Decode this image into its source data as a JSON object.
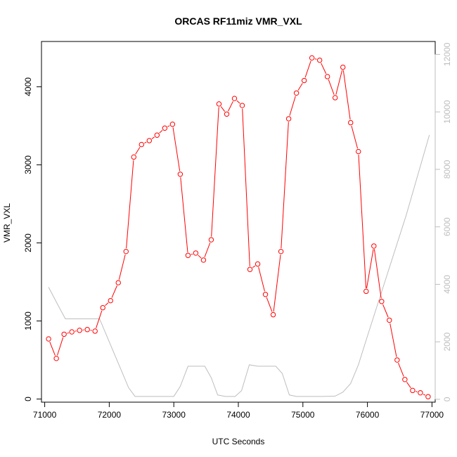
{
  "chart_data": {
    "type": "line",
    "title": "ORCAS RF11miz VMR_VXL",
    "xlabel": "UTC Seconds",
    "ylabel": "VMR_VXL",
    "xlim": [
      70950,
      77050
    ],
    "ylim": [
      -40,
      4580
    ],
    "y2lim": [
      -100,
      12450
    ],
    "x_ticks": [
      71000,
      72000,
      73000,
      74000,
      75000,
      76000,
      77000
    ],
    "x_tick_labels": [
      "71000",
      "72000",
      "73000",
      "74000",
      "75000",
      "76000",
      "77000"
    ],
    "y_ticks": [
      0,
      1000,
      2000,
      3000,
      4000
    ],
    "y_tick_labels": [
      "0",
      "1000",
      "2000",
      "3000",
      "4000"
    ],
    "y2_ticks": [
      0,
      2000,
      4000,
      6000,
      8000,
      10000,
      12000
    ],
    "y2_tick_labels": [
      "0",
      "2000",
      "4000",
      "6000",
      "8000",
      "10000",
      "12000"
    ],
    "grid": false,
    "colors": {
      "primary": "#ff0000",
      "secondary": "#bebebe",
      "axis": "#000000"
    },
    "series": [
      {
        "axis": "left",
        "style": "line+points",
        "color": "#ff0000",
        "x": [
          71060,
          71180,
          71300,
          71420,
          71540,
          71660,
          71780,
          71900,
          72020,
          72140,
          72260,
          72380,
          72500,
          72620,
          72740,
          72860,
          72980,
          73100,
          73220,
          73340,
          73460,
          73580,
          73700,
          73820,
          73940,
          74060,
          74180,
          74300,
          74420,
          74540,
          74660,
          74780,
          74900,
          75020,
          75140,
          75260,
          75380,
          75500,
          75620,
          75740,
          75860,
          75980,
          76100,
          76220,
          76340,
          76460,
          76580,
          76700,
          76820,
          76940
        ],
        "y": [
          770,
          520,
          830,
          860,
          880,
          890,
          870,
          1170,
          1260,
          1490,
          1890,
          3100,
          3260,
          3310,
          3380,
          3470,
          3520,
          2880,
          1840,
          1870,
          1780,
          2040,
          3780,
          3650,
          3850,
          3760,
          1660,
          1730,
          1340,
          1080,
          1890,
          3590,
          3920,
          4080,
          4370,
          4340,
          4130,
          3860,
          4250,
          3540,
          3170,
          1380,
          1960,
          1250,
          1010,
          500,
          250,
          110,
          80,
          30
        ]
      },
      {
        "axis": "right",
        "style": "line",
        "color": "#bebebe",
        "x": [
          71060,
          71200,
          71320,
          71500,
          71700,
          71850,
          72000,
          72150,
          72300,
          72400,
          72600,
          72800,
          73000,
          73100,
          73220,
          73350,
          73480,
          73580,
          73680,
          73800,
          73950,
          74050,
          74170,
          74300,
          74450,
          74580,
          74680,
          74790,
          74900,
          75100,
          75300,
          75500,
          75620,
          75740,
          75860,
          76000,
          76300,
          76600,
          76960
        ],
        "y": [
          3900,
          3300,
          2800,
          2800,
          2800,
          2800,
          2000,
          1200,
          400,
          100,
          100,
          100,
          100,
          450,
          1150,
          1150,
          1150,
          750,
          150,
          100,
          100,
          300,
          1200,
          1150,
          1150,
          1150,
          900,
          150,
          100,
          100,
          100,
          110,
          250,
          550,
          1200,
          2200,
          4300,
          6400,
          9200
        ]
      }
    ]
  }
}
